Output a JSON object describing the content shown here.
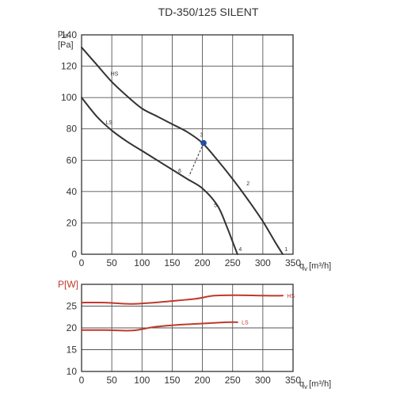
{
  "title": "TD-350/125 SILENT",
  "chart_data": [
    {
      "type": "line",
      "ylabel_main": "p",
      "ylabel_sub": "st",
      "ylabel_unit": "[Pa]",
      "xlabel_main": "q",
      "xlabel_sub": "v",
      "xlabel_unit": "[m³/h]",
      "xlim": [
        0,
        350
      ],
      "ylim": [
        0,
        140
      ],
      "xticks": [
        "0",
        "50",
        "100",
        "150",
        "200",
        "250",
        "300",
        "350"
      ],
      "yticks": [
        "0",
        "20",
        "40",
        "60",
        "80",
        "100",
        "120",
        "140"
      ],
      "grid": true,
      "series": [
        {
          "name": "HS",
          "color": "#333333",
          "points": [
            [
              0,
              132
            ],
            [
              25,
              121
            ],
            [
              50,
              110
            ],
            [
              75,
              101
            ],
            [
              100,
              93
            ],
            [
              125,
              88
            ],
            [
              150,
              83
            ],
            [
              175,
              78
            ],
            [
              200,
              71
            ],
            [
              225,
              60
            ],
            [
              250,
              48
            ],
            [
              275,
              35
            ],
            [
              300,
              21
            ],
            [
              320,
              8
            ],
            [
              333,
              0
            ]
          ]
        },
        {
          "name": "LS",
          "color": "#333333",
          "points": [
            [
              0,
              100
            ],
            [
              25,
              88
            ],
            [
              50,
              79
            ],
            [
              75,
              72
            ],
            [
              100,
              66
            ],
            [
              125,
              60
            ],
            [
              150,
              54
            ],
            [
              175,
              48
            ],
            [
              200,
              42
            ],
            [
              225,
              31
            ],
            [
              240,
              18
            ],
            [
              250,
              8
            ],
            [
              258,
              0
            ]
          ]
        }
      ],
      "operating_lines": [
        {
          "from": [
            202,
            71
          ],
          "to": [
            178,
            50
          ]
        }
      ],
      "operating_point": {
        "x": 202,
        "y": 71,
        "color": "#1f4fa6"
      },
      "point_labels": [
        {
          "text": "HS",
          "x": 48,
          "y": 114
        },
        {
          "text": "LS",
          "x": 40,
          "y": 83
        },
        {
          "text": "3",
          "x": 196,
          "y": 75
        },
        {
          "text": "2",
          "x": 273,
          "y": 44
        },
        {
          "text": "6",
          "x": 160,
          "y": 52
        },
        {
          "text": "5",
          "x": 219,
          "y": 30
        },
        {
          "text": "4",
          "x": 260,
          "y": 2
        },
        {
          "text": "1",
          "x": 336,
          "y": 2
        }
      ]
    },
    {
      "type": "line",
      "ylabel": "P[W]",
      "ylabel_color": "#c0392b",
      "xlabel_main": "q",
      "xlabel_sub": "v",
      "xlabel_unit": "[m³/h]",
      "xlim": [
        0,
        350
      ],
      "ylim": [
        10,
        30
      ],
      "xticks": [
        "0",
        "50",
        "100",
        "150",
        "200",
        "250",
        "300",
        "350"
      ],
      "yticks": [
        "10",
        "15",
        "20",
        "25"
      ],
      "grid": true,
      "series": [
        {
          "name": "HS",
          "color": "#c0392b",
          "points": [
            [
              0,
              25.8
            ],
            [
              40,
              25.8
            ],
            [
              80,
              25.5
            ],
            [
              120,
              25.8
            ],
            [
              160,
              26.3
            ],
            [
              190,
              26.7
            ],
            [
              220,
              27.4
            ],
            [
              260,
              27.5
            ],
            [
              300,
              27.4
            ],
            [
              333,
              27.4
            ]
          ]
        },
        {
          "name": "LS",
          "color": "#c0392b",
          "points": [
            [
              0,
              19.5
            ],
            [
              40,
              19.5
            ],
            [
              85,
              19.4
            ],
            [
              120,
              20.2
            ],
            [
              160,
              20.7
            ],
            [
              200,
              21.0
            ],
            [
              240,
              21.3
            ],
            [
              258,
              21.3
            ]
          ]
        }
      ],
      "series_labels": [
        {
          "text": "HS",
          "x": 340,
          "y": 27.4
        },
        {
          "text": "LS",
          "x": 265,
          "y": 21.3
        }
      ]
    }
  ]
}
